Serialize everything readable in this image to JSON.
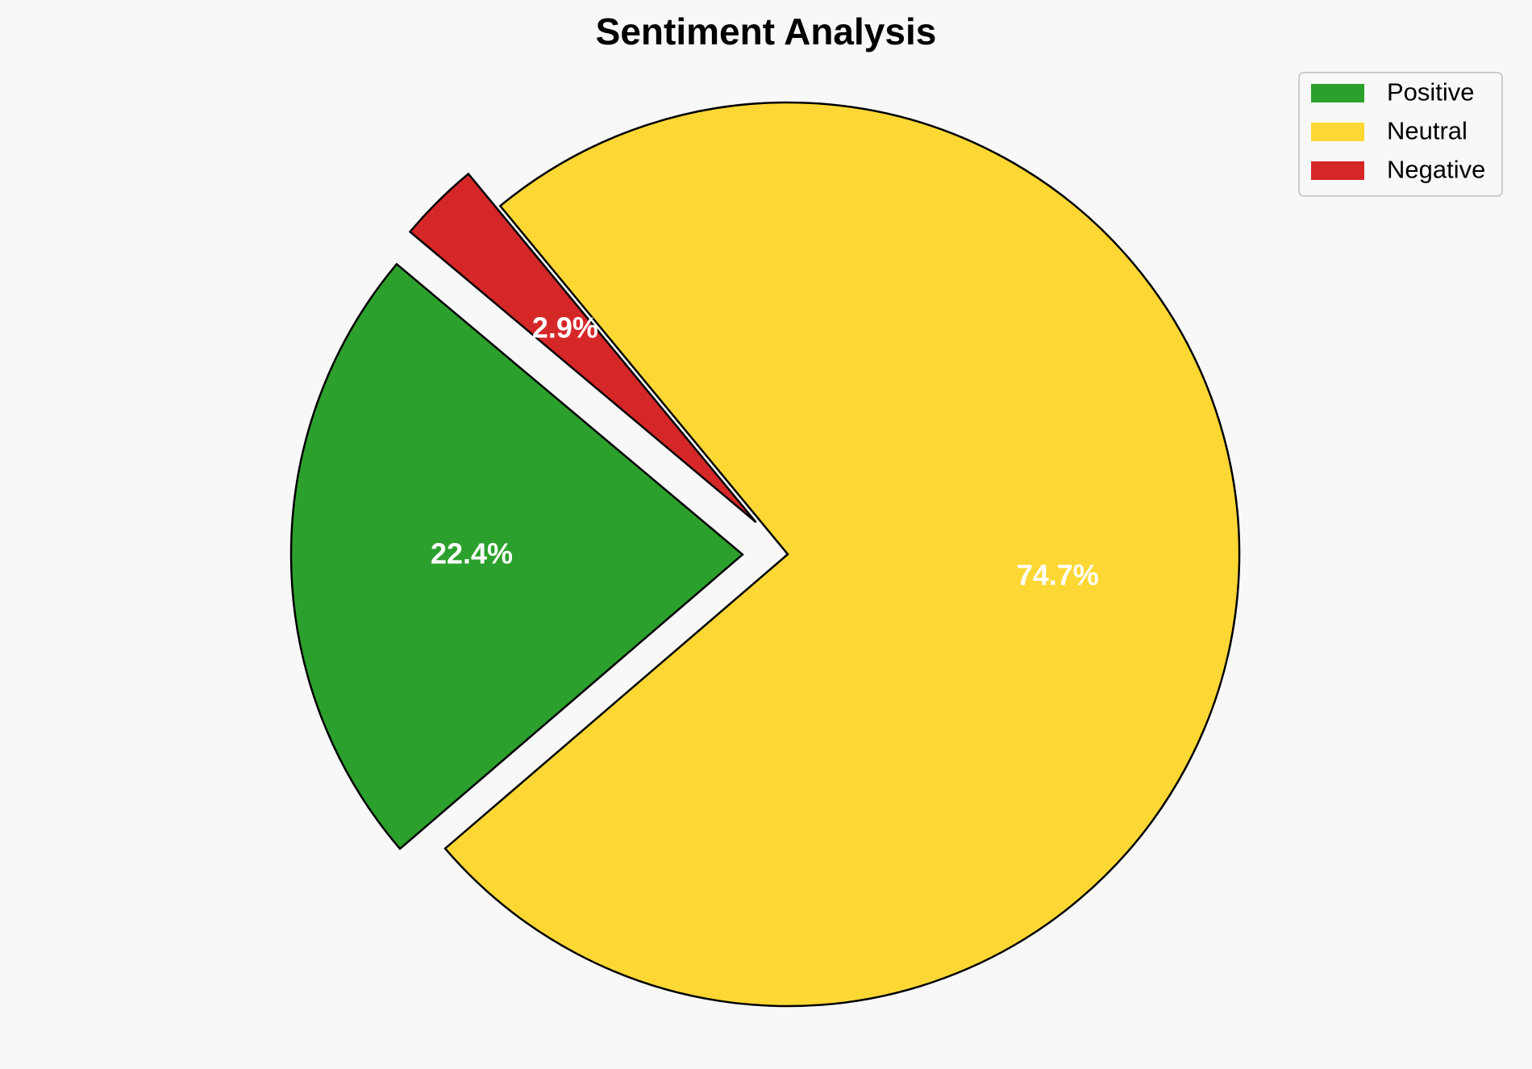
{
  "chart_data": {
    "type": "pie",
    "title": "Sentiment Analysis",
    "slices": [
      {
        "label": "Positive",
        "value": 22.4,
        "display": "22.4%",
        "color": "#2ca02c",
        "exploded": true
      },
      {
        "label": "Neutral",
        "value": 74.7,
        "display": "74.7%",
        "color": "#fdd835",
        "exploded": false
      },
      {
        "label": "Negative",
        "value": 2.9,
        "display": "2.9%",
        "color": "#d62728",
        "exploded": true
      }
    ],
    "start_angle_deg": 140,
    "direction": "counterclockwise",
    "legend": {
      "placement": "top-right",
      "entries": [
        "Positive",
        "Neutral",
        "Negative"
      ]
    }
  }
}
